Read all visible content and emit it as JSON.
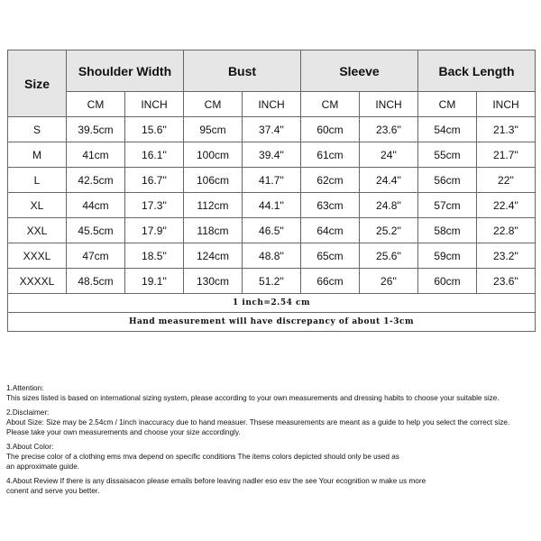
{
  "table": {
    "size_header": "Size",
    "groups": [
      "Shoulder Width",
      "Bust",
      "Sleeve",
      "Back Length"
    ],
    "units": [
      "CM",
      "INCH",
      "CM",
      "INCH",
      "CM",
      "INCH",
      "CM",
      "INCH"
    ],
    "rows": [
      [
        "S",
        "39.5cm",
        "15.6''",
        "95cm",
        "37.4''",
        "60cm",
        "23.6''",
        "54cm",
        "21.3''"
      ],
      [
        "M",
        "41cm",
        "16.1''",
        "100cm",
        "39.4''",
        "61cm",
        "24''",
        "55cm",
        "21.7''"
      ],
      [
        "L",
        "42.5cm",
        "16.7''",
        "106cm",
        "41.7''",
        "62cm",
        "24.4''",
        "56cm",
        "22''"
      ],
      [
        "XL",
        "44cm",
        "17.3''",
        "112cm",
        "44.1''",
        "63cm",
        "24.8''",
        "57cm",
        "22.4''"
      ],
      [
        "XXL",
        "45.5cm",
        "17.9''",
        "118cm",
        "46.5''",
        "64cm",
        "25.2''",
        "58cm",
        "22.8''"
      ],
      [
        "XXXL",
        "47cm",
        "18.5''",
        "124cm",
        "48.8''",
        "65cm",
        "25.6''",
        "59cm",
        "23.2''"
      ],
      [
        "XXXXL",
        "48.5cm",
        "19.1''",
        "130cm",
        "51.2''",
        "66cm",
        "26''",
        "60cm",
        "23.6''"
      ]
    ],
    "conversion_note": "1 inch=2.54 cm",
    "measurement_note": "Hand measurement will have discrepancy of about 1-3cm"
  },
  "notes": [
    {
      "title": "1.Attention:",
      "lines": [
        "This sizes listed is based on international sizing system, please according to your own measurements and dressing habits to choose your suitable size."
      ]
    },
    {
      "title": "2.Disclaimer:",
      "lines": [
        "About Size: Size may be 2.54cm / 1inch inaccuracy due to hand measuer. Thsese measurements are meant as a guide to help you select the correct size.",
        "Please take your own measurements and choose your size accordingly."
      ]
    },
    {
      "title": "3.About Color:",
      "lines": [
        "The precise color of a clothing ems mva depend on specific conditions The items colors depicted should only be used as",
        "an approximate guide."
      ]
    },
    {
      "title": "",
      "lines": [
        "4.About Review If there is any dissaisacon please emails before leaving nadler eso esv the see Your ecognition w make us more",
        "conent and serve you better."
      ]
    }
  ]
}
